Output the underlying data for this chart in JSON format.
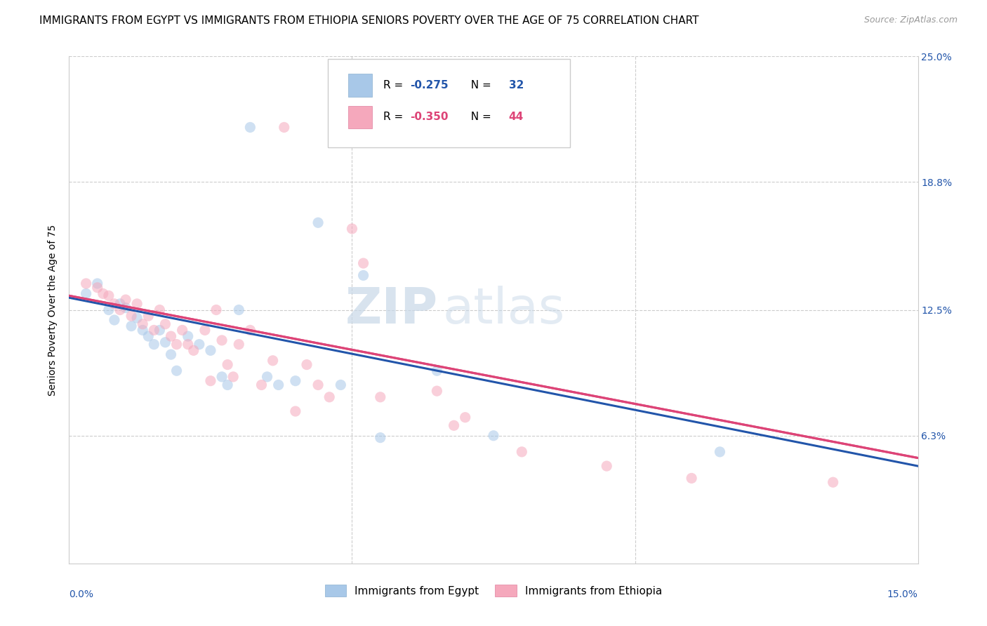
{
  "title": "IMMIGRANTS FROM EGYPT VS IMMIGRANTS FROM ETHIOPIA SENIORS POVERTY OVER THE AGE OF 75 CORRELATION CHART",
  "source": "Source: ZipAtlas.com",
  "ylabel": "Seniors Poverty Over the Age of 75",
  "xlim": [
    0.0,
    0.15
  ],
  "ylim": [
    0.0,
    0.25
  ],
  "yticks": [
    0.063,
    0.125,
    0.188,
    0.25
  ],
  "ytick_labels": [
    "6.3%",
    "12.5%",
    "18.8%",
    "25.0%"
  ],
  "egypt_color": "#a8c8e8",
  "ethiopia_color": "#f5a8bc",
  "egypt_line_color": "#2255aa",
  "ethiopia_line_color": "#dd4477",
  "egypt_R": -0.275,
  "egypt_N": 32,
  "ethiopia_R": -0.35,
  "ethiopia_N": 44,
  "egypt_x": [
    0.003,
    0.005,
    0.007,
    0.008,
    0.009,
    0.01,
    0.011,
    0.012,
    0.013,
    0.014,
    0.015,
    0.016,
    0.017,
    0.018,
    0.019,
    0.021,
    0.023,
    0.025,
    0.027,
    0.028,
    0.03,
    0.032,
    0.035,
    0.037,
    0.04,
    0.044,
    0.048,
    0.052,
    0.055,
    0.065,
    0.075,
    0.115
  ],
  "egypt_y": [
    0.133,
    0.138,
    0.125,
    0.12,
    0.128,
    0.126,
    0.117,
    0.121,
    0.115,
    0.112,
    0.108,
    0.115,
    0.109,
    0.103,
    0.095,
    0.112,
    0.108,
    0.105,
    0.092,
    0.088,
    0.125,
    0.215,
    0.092,
    0.088,
    0.09,
    0.168,
    0.088,
    0.142,
    0.062,
    0.095,
    0.063,
    0.055
  ],
  "ethiopia_x": [
    0.003,
    0.005,
    0.006,
    0.007,
    0.008,
    0.009,
    0.01,
    0.011,
    0.012,
    0.013,
    0.014,
    0.015,
    0.016,
    0.017,
    0.018,
    0.019,
    0.02,
    0.021,
    0.022,
    0.024,
    0.025,
    0.026,
    0.027,
    0.028,
    0.029,
    0.03,
    0.032,
    0.034,
    0.036,
    0.038,
    0.04,
    0.042,
    0.044,
    0.046,
    0.05,
    0.052,
    0.055,
    0.065,
    0.068,
    0.07,
    0.08,
    0.095,
    0.11,
    0.135
  ],
  "ethiopia_y": [
    0.138,
    0.136,
    0.133,
    0.132,
    0.128,
    0.125,
    0.13,
    0.122,
    0.128,
    0.118,
    0.122,
    0.115,
    0.125,
    0.118,
    0.112,
    0.108,
    0.115,
    0.108,
    0.105,
    0.115,
    0.09,
    0.125,
    0.11,
    0.098,
    0.092,
    0.108,
    0.115,
    0.088,
    0.1,
    0.215,
    0.075,
    0.098,
    0.088,
    0.082,
    0.165,
    0.148,
    0.082,
    0.085,
    0.068,
    0.072,
    0.055,
    0.048,
    0.042,
    0.04
  ],
  "egypt_line_x": [
    0.0,
    0.15
  ],
  "egypt_line_y": [
    0.131,
    0.048
  ],
  "ethiopia_line_x": [
    0.0,
    0.15
  ],
  "ethiopia_line_y": [
    0.132,
    0.052
  ],
  "watermark_zip": "ZIP",
  "watermark_atlas": "atlas",
  "background_color": "#ffffff",
  "grid_color": "#cccccc",
  "title_fontsize": 11,
  "axis_label_fontsize": 10,
  "tick_fontsize": 10,
  "legend_fontsize": 11,
  "source_fontsize": 9,
  "scatter_size": 120,
  "scatter_alpha": 0.55,
  "line_width": 2.2
}
